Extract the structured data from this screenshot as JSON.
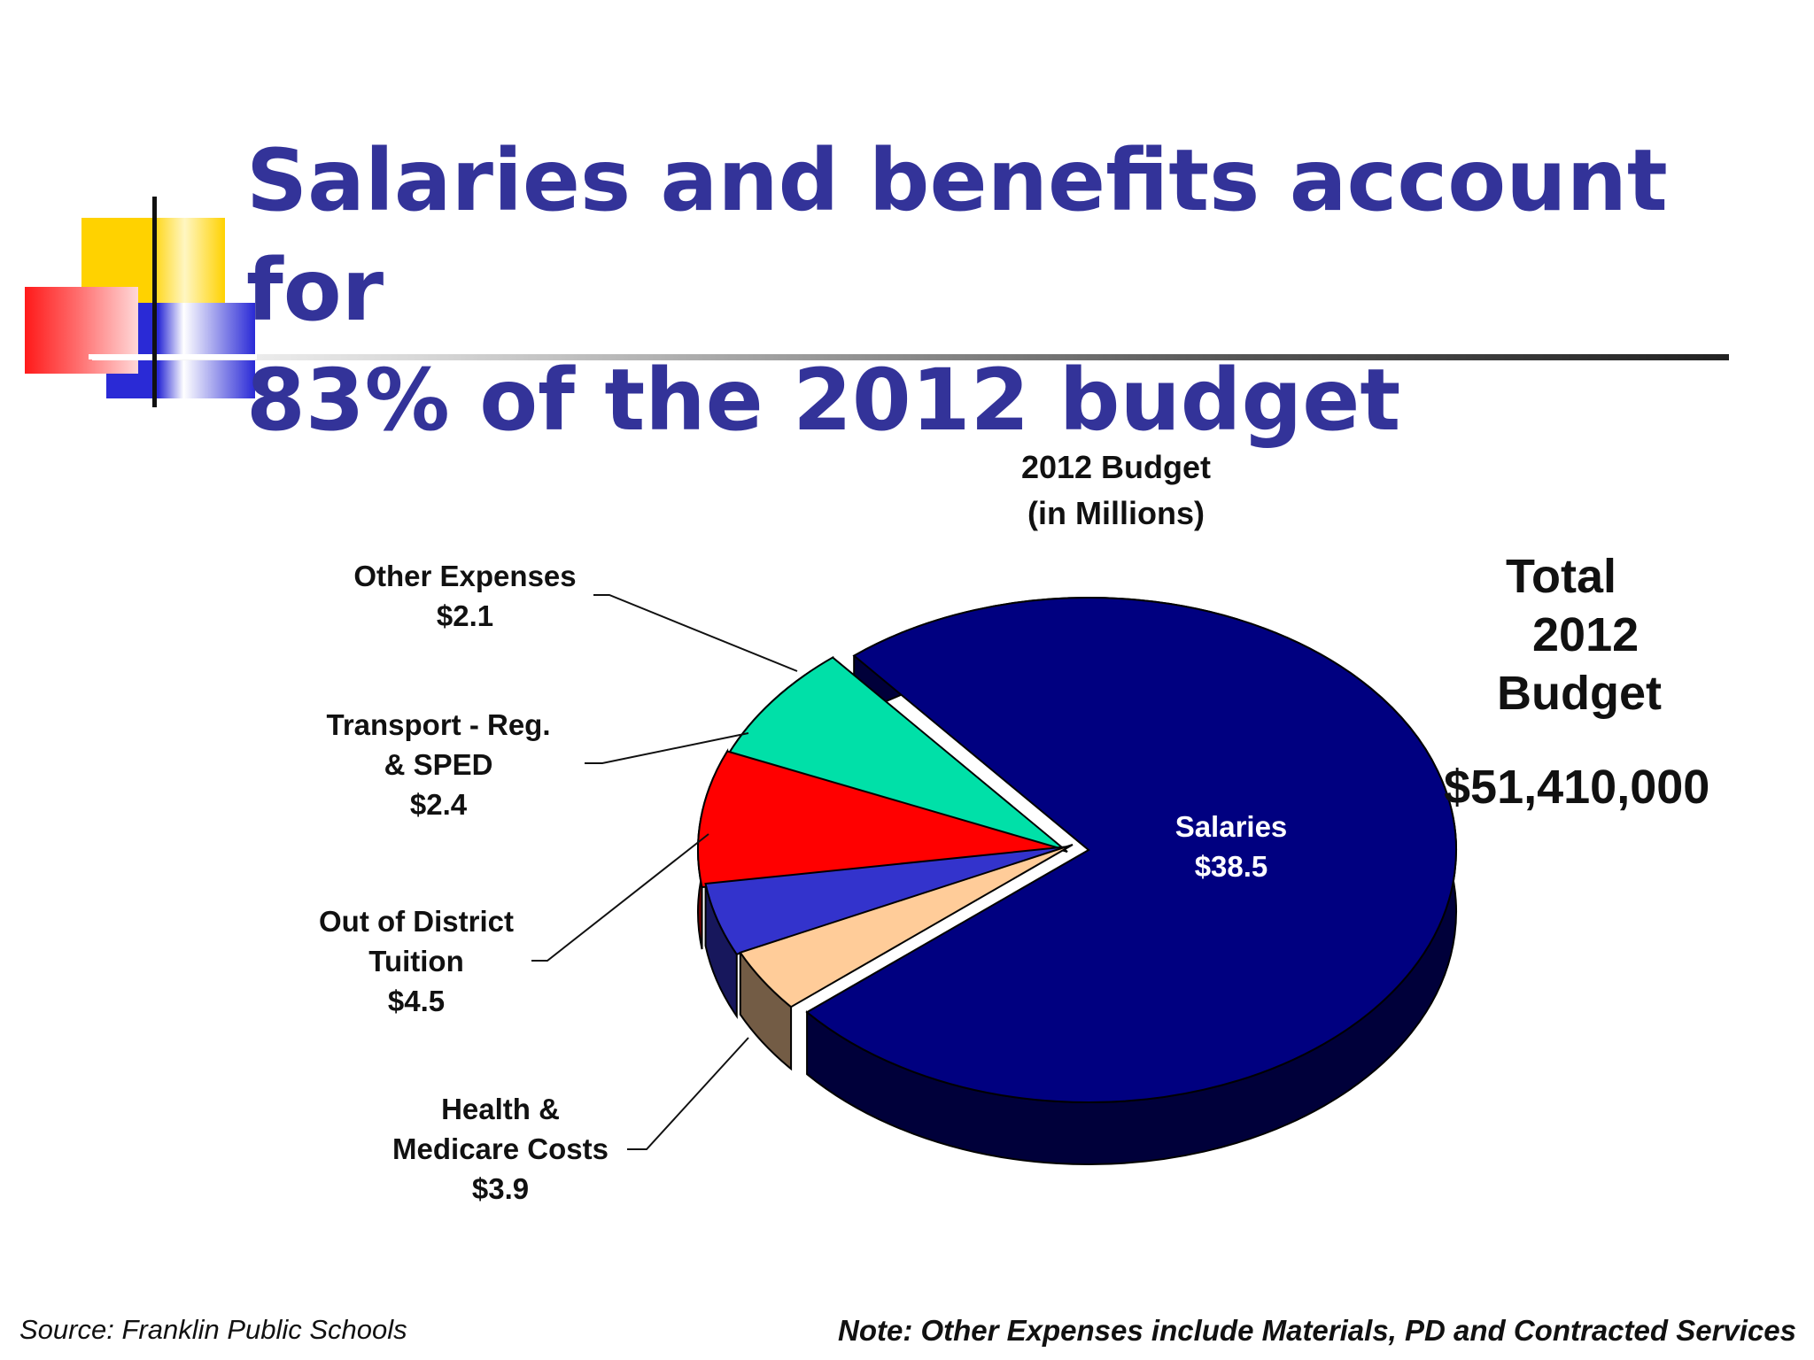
{
  "slide": {
    "title_line1": "Salaries and benefits account for",
    "title_line2": "83% of the 2012 budget",
    "source": "Source: Franklin Public Schools",
    "note": "Note: Other Expenses include Materials, PD and Contracted Services"
  },
  "total": {
    "line1": "Total",
    "line2": "2012",
    "line3": "Budget",
    "amount": "$51,410,000"
  },
  "chart_data": {
    "type": "pie",
    "title_line1": "2012 Budget",
    "title_line2": "(in Millions)",
    "units": "$ millions",
    "slices": [
      {
        "name": "Salaries",
        "value": 38.5,
        "label": "$38.5",
        "color": "#000080"
      },
      {
        "name_lines": [
          "Health &",
          "Medicare Costs"
        ],
        "value": 3.9,
        "label": "$3.9",
        "color": "#00e0a8"
      },
      {
        "name_lines": [
          "Out of District",
          "Tuition"
        ],
        "value": 4.5,
        "label": "$4.5",
        "color": "#ff0000"
      },
      {
        "name_lines": [
          "Transport - Reg.",
          "& SPED"
        ],
        "value": 2.4,
        "label": "$2.4",
        "color": "#3333cc"
      },
      {
        "name": "Other Expenses",
        "value": 2.1,
        "label": "$2.1",
        "color": "#ffcc99"
      }
    ]
  }
}
